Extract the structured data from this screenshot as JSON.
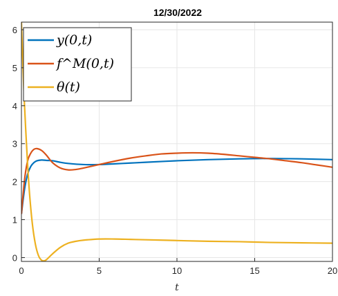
{
  "chart_data": {
    "type": "line",
    "title": "12/30/2022",
    "xlabel": "t",
    "ylabel": "",
    "xlim": [
      0,
      20
    ],
    "ylim": [
      -0.1,
      6.2
    ],
    "xticks": [
      "0",
      "5",
      "10",
      "15",
      "20"
    ],
    "yticks": [
      "0",
      "1",
      "2",
      "3",
      "4",
      "5",
      "6"
    ],
    "grid": true,
    "legend_position": "top-left",
    "series": [
      {
        "name": "y(0,t)",
        "color": "#0072BD",
        "x": [
          0,
          0.2,
          0.4,
          0.6,
          0.8,
          1.0,
          1.3,
          1.6,
          2.0,
          2.5,
          3,
          4,
          5,
          6,
          7,
          8,
          10,
          12,
          14,
          16,
          18,
          20
        ],
        "y": [
          1.15,
          1.8,
          2.2,
          2.4,
          2.5,
          2.55,
          2.57,
          2.56,
          2.55,
          2.51,
          2.48,
          2.45,
          2.45,
          2.47,
          2.49,
          2.51,
          2.55,
          2.58,
          2.6,
          2.61,
          2.6,
          2.58
        ]
      },
      {
        "name": "f^M(0,t)",
        "color": "#D95319",
        "x": [
          0,
          0.2,
          0.4,
          0.6,
          0.8,
          1.0,
          1.3,
          1.6,
          2.0,
          2.5,
          3.0,
          3.5,
          4,
          5,
          6,
          7,
          8,
          9,
          10,
          11,
          12,
          13,
          14,
          15,
          16,
          17,
          18,
          19,
          20
        ],
        "y": [
          1.15,
          2.05,
          2.55,
          2.75,
          2.85,
          2.87,
          2.82,
          2.7,
          2.5,
          2.36,
          2.31,
          2.32,
          2.36,
          2.45,
          2.54,
          2.62,
          2.68,
          2.73,
          2.75,
          2.76,
          2.75,
          2.72,
          2.68,
          2.64,
          2.6,
          2.55,
          2.5,
          2.44,
          2.38
        ]
      },
      {
        "name": "θ(t)",
        "color": "#EDB120",
        "x": [
          0,
          0.1,
          0.2,
          0.35,
          0.5,
          0.7,
          0.9,
          1.1,
          1.3,
          1.5,
          1.7,
          2.0,
          2.5,
          3,
          3.5,
          4,
          5,
          6,
          7,
          8,
          10,
          12,
          14,
          16,
          18,
          20
        ],
        "y": [
          6.2,
          5.0,
          4.0,
          2.8,
          1.8,
          0.9,
          0.35,
          0.05,
          -0.07,
          -0.08,
          -0.02,
          0.1,
          0.27,
          0.38,
          0.43,
          0.46,
          0.49,
          0.49,
          0.48,
          0.47,
          0.45,
          0.43,
          0.42,
          0.4,
          0.39,
          0.38
        ]
      }
    ]
  }
}
